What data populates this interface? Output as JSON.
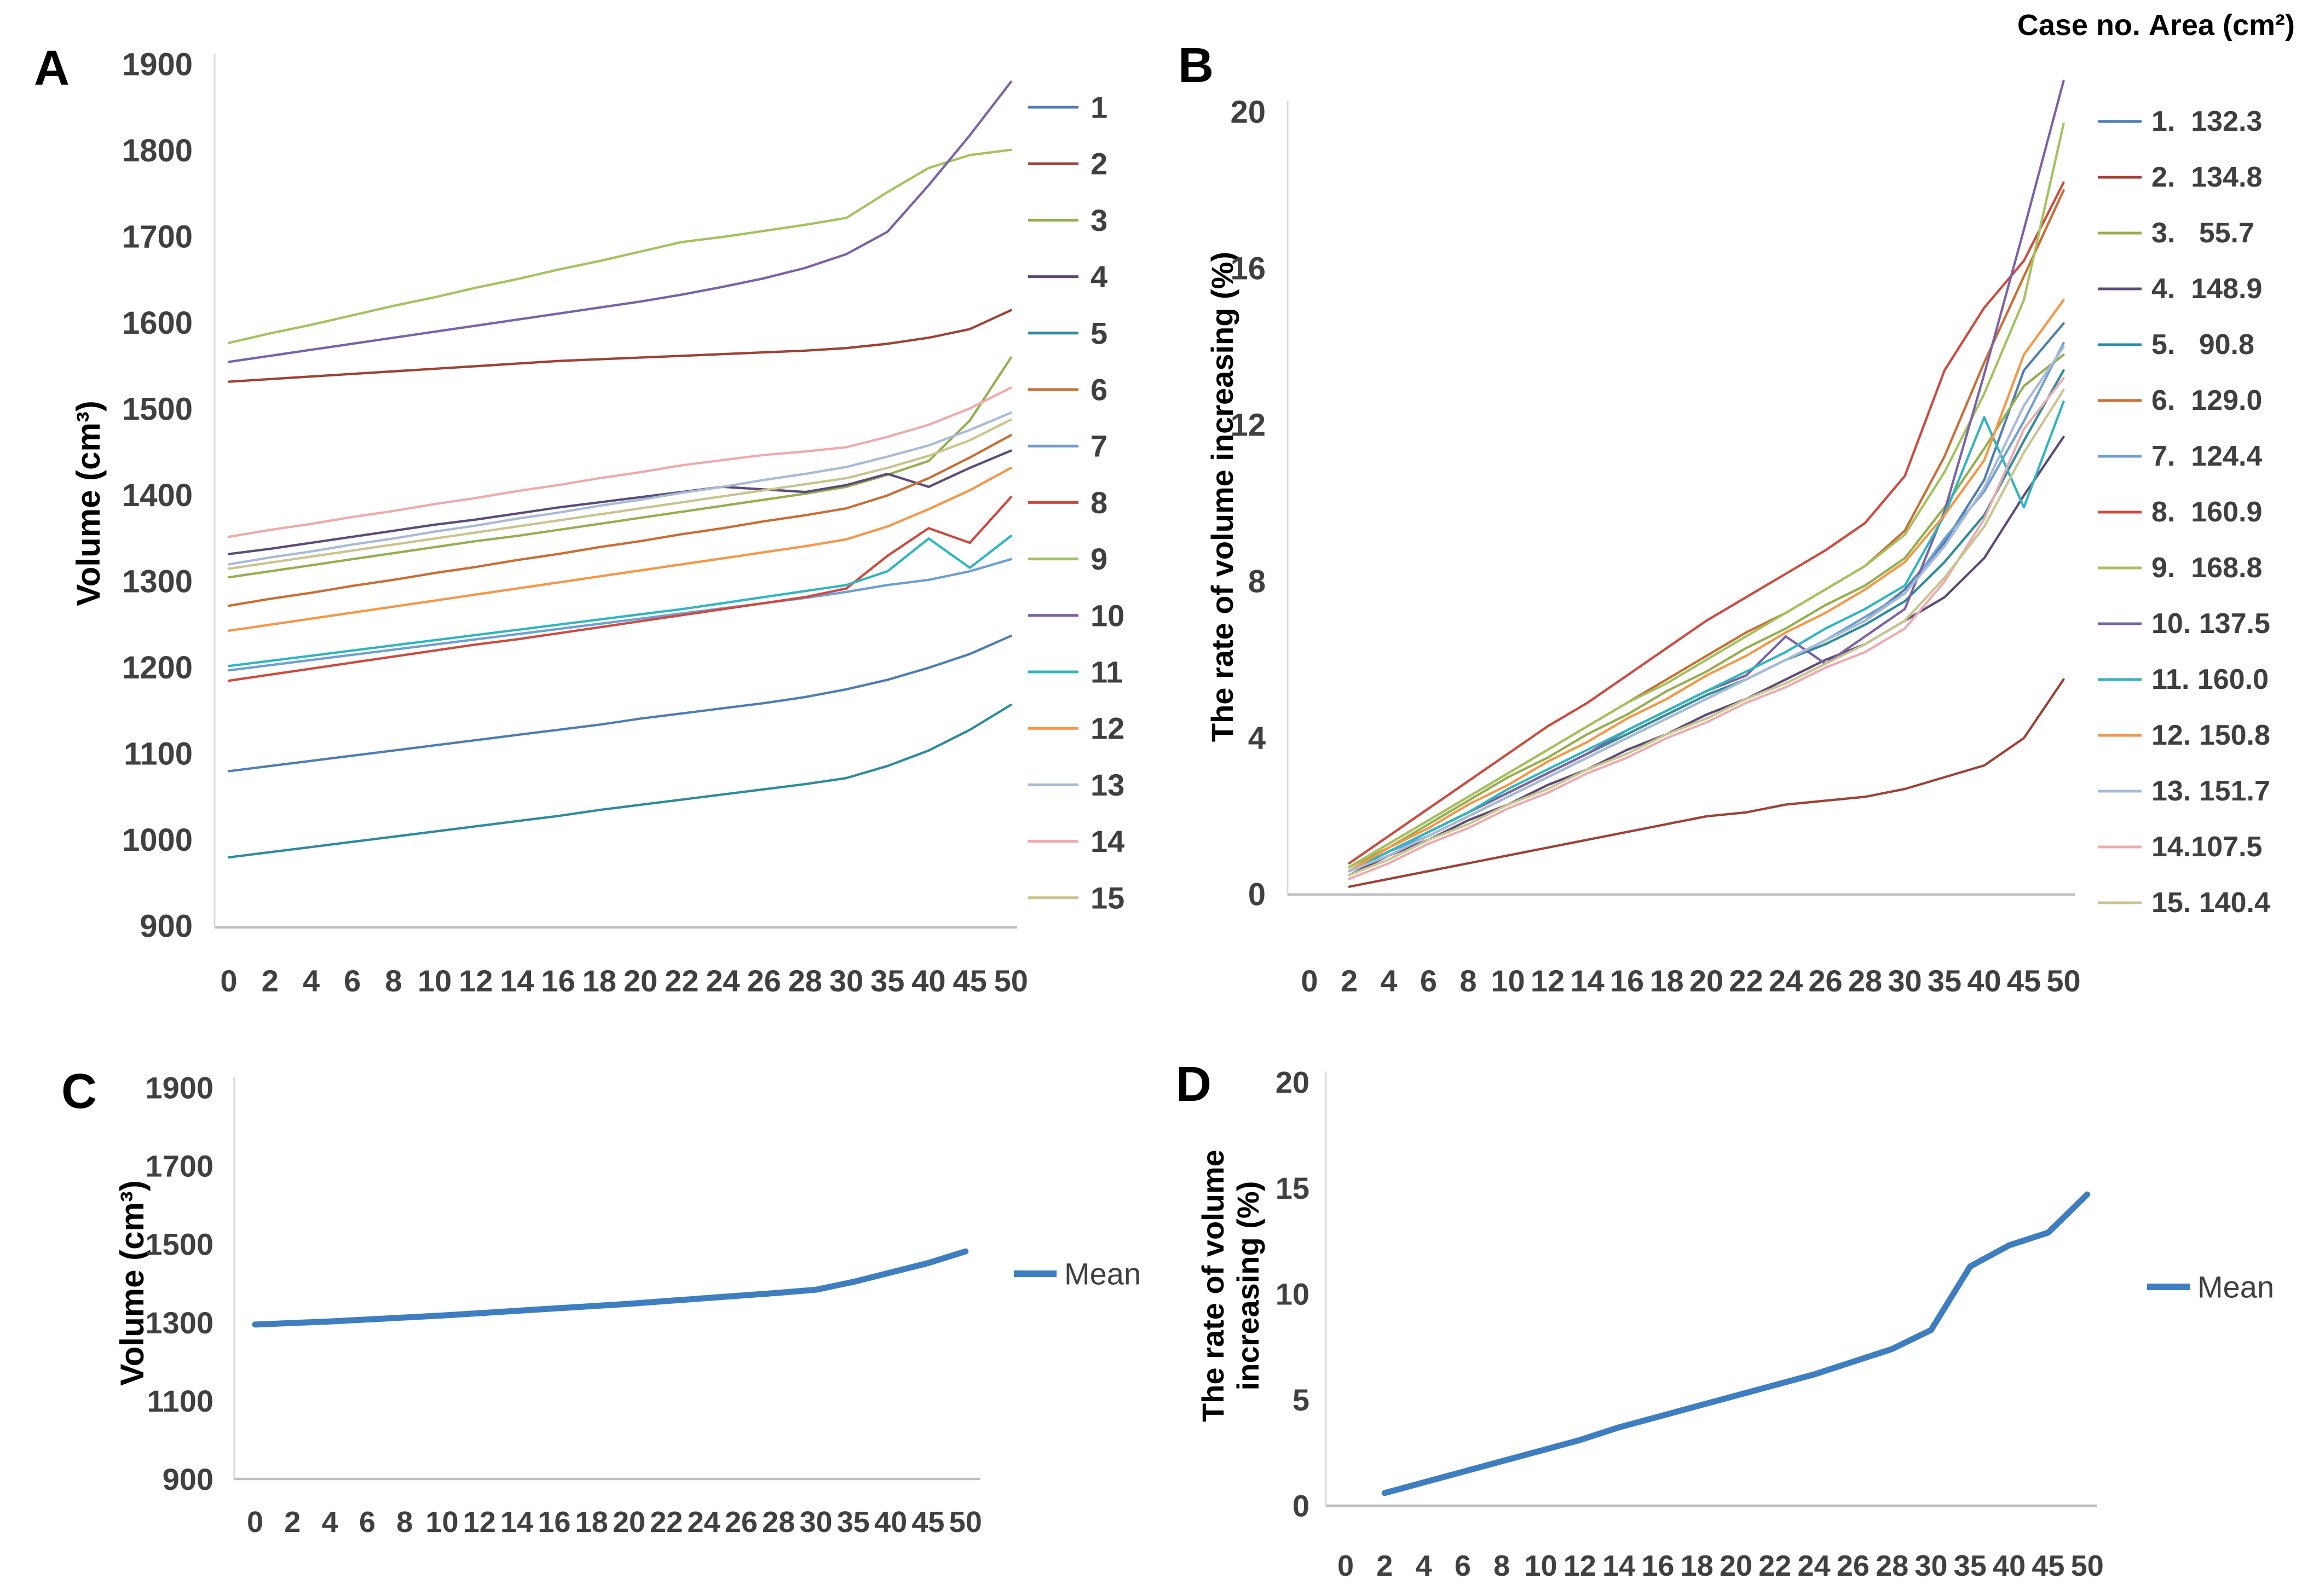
{
  "figure": {
    "background": "#ffffff",
    "panels": [
      {
        "letter": "A"
      },
      {
        "letter": "B"
      },
      {
        "letter": "C"
      },
      {
        "letter": "D"
      }
    ]
  },
  "chart_data": [
    {
      "id": "A",
      "type": "line",
      "title": "",
      "xlabel": "",
      "ylabel": "Volume (cm³)",
      "ylim": [
        900,
        1900
      ],
      "yticks": [
        "1900",
        "1800",
        "1700",
        "1600",
        "1500",
        "1400",
        "1300",
        "1200",
        "1100",
        "1000",
        "900"
      ],
      "grid": false,
      "legend_position": "right",
      "categories": [
        "0",
        "2",
        "4",
        "6",
        "8",
        "10",
        "12",
        "14",
        "16",
        "18",
        "20",
        "22",
        "24",
        "26",
        "28",
        "30",
        "35",
        "40",
        "45",
        "50"
      ],
      "series": [
        {
          "name": "1",
          "legend_label": "1",
          "color": "#4F7DB3",
          "values": [
            1080,
            1086,
            1092,
            1098,
            1104,
            1110,
            1116,
            1122,
            1128,
            1134,
            1141,
            1147,
            1153,
            1159,
            1166,
            1175,
            1186,
            1200,
            1216,
            1237
          ]
        },
        {
          "name": "2",
          "legend_label": "2",
          "color": "#9E4136",
          "values": [
            1532,
            1535,
            1538,
            1541,
            1544,
            1547,
            1550,
            1553,
            1556,
            1558,
            1560,
            1562,
            1564,
            1566,
            1568,
            1571,
            1576,
            1583,
            1593,
            1615
          ]
        },
        {
          "name": "3",
          "legend_label": "3",
          "color": "#94AF4E",
          "values": [
            1305,
            1312,
            1319,
            1326,
            1333,
            1340,
            1347,
            1353,
            1360,
            1367,
            1374,
            1381,
            1388,
            1395,
            1402,
            1410,
            1424,
            1440,
            1487,
            1560
          ]
        },
        {
          "name": "4",
          "legend_label": "4",
          "color": "#5C4B77",
          "values": [
            1332,
            1338,
            1345,
            1352,
            1359,
            1366,
            1372,
            1379,
            1386,
            1392,
            1398,
            1404,
            1410,
            1407,
            1404,
            1412,
            1425,
            1410,
            1432,
            1452
          ]
        },
        {
          "name": "5",
          "legend_label": "5",
          "color": "#2E8B9A",
          "values": [
            980,
            986,
            992,
            998,
            1004,
            1010,
            1016,
            1022,
            1028,
            1035,
            1041,
            1047,
            1053,
            1059,
            1065,
            1072,
            1086,
            1104,
            1128,
            1157
          ]
        },
        {
          "name": "6",
          "legend_label": "6",
          "color": "#CB6D34",
          "values": [
            1272,
            1280,
            1287,
            1295,
            1302,
            1310,
            1317,
            1325,
            1332,
            1340,
            1347,
            1355,
            1362,
            1370,
            1377,
            1385,
            1400,
            1420,
            1444,
            1470
          ]
        },
        {
          "name": "7",
          "legend_label": "7",
          "color": "#6E9FD4",
          "values": [
            1197,
            1203,
            1209,
            1215,
            1221,
            1227,
            1233,
            1239,
            1245,
            1251,
            1257,
            1263,
            1269,
            1275,
            1281,
            1288,
            1296,
            1302,
            1312,
            1326
          ]
        },
        {
          "name": "8",
          "legend_label": "8",
          "color": "#CE4A3F",
          "values": [
            1185,
            1192,
            1199,
            1206,
            1213,
            1220,
            1227,
            1233,
            1240,
            1247,
            1254,
            1261,
            1268,
            1275,
            1282,
            1292,
            1330,
            1362,
            1345,
            1398
          ]
        },
        {
          "name": "9",
          "legend_label": "9",
          "color": "#A3C25D",
          "values": [
            1577,
            1588,
            1598,
            1609,
            1620,
            1630,
            1641,
            1651,
            1662,
            1672,
            1683,
            1694,
            1700,
            1707,
            1714,
            1722,
            1752,
            1780,
            1795,
            1801
          ]
        },
        {
          "name": "10",
          "legend_label": "10",
          "color": "#7A62A8",
          "values": [
            1555,
            1562,
            1569,
            1576,
            1583,
            1590,
            1597,
            1604,
            1611,
            1618,
            1625,
            1633,
            1642,
            1652,
            1664,
            1680,
            1706,
            1760,
            1818,
            1880
          ]
        },
        {
          "name": "11",
          "legend_label": "11",
          "color": "#2FB6BE",
          "values": [
            1202,
            1208,
            1214,
            1220,
            1226,
            1232,
            1238,
            1244,
            1250,
            1256,
            1262,
            1268,
            1275,
            1282,
            1289,
            1296,
            1312,
            1350,
            1316,
            1353
          ]
        },
        {
          "name": "12",
          "legend_label": "12",
          "color": "#F79646",
          "values": [
            1243,
            1250,
            1257,
            1264,
            1271,
            1278,
            1285,
            1292,
            1299,
            1306,
            1313,
            1320,
            1327,
            1334,
            1341,
            1349,
            1364,
            1384,
            1406,
            1432
          ]
        },
        {
          "name": "13",
          "legend_label": "13",
          "color": "#A9BAD6",
          "values": [
            1320,
            1328,
            1335,
            1343,
            1350,
            1358,
            1365,
            1373,
            1380,
            1388,
            1395,
            1403,
            1410,
            1418,
            1425,
            1433,
            1445,
            1458,
            1476,
            1496
          ]
        },
        {
          "name": "14",
          "legend_label": "14",
          "color": "#EFAAAE",
          "values": [
            1352,
            1360,
            1367,
            1375,
            1382,
            1390,
            1397,
            1405,
            1412,
            1420,
            1427,
            1435,
            1441,
            1447,
            1451,
            1456,
            1468,
            1482,
            1501,
            1525
          ]
        },
        {
          "name": "15",
          "legend_label": "15",
          "color": "#C9C48E",
          "values": [
            1315,
            1322,
            1329,
            1336,
            1343,
            1350,
            1357,
            1364,
            1371,
            1378,
            1385,
            1392,
            1399,
            1406,
            1413,
            1420,
            1432,
            1446,
            1464,
            1488
          ]
        }
      ]
    },
    {
      "id": "B",
      "type": "line",
      "title": "",
      "xlabel": "",
      "ylabel": "The rate of volume increasing (%)",
      "ylim": [
        0,
        20
      ],
      "yticks": [
        "20",
        "16",
        "12",
        "8",
        "4",
        "0"
      ],
      "grid": false,
      "legend_position": "right",
      "legend_title": "Case no. Area (cm²)",
      "categories": [
        "0",
        "2",
        "4",
        "6",
        "8",
        "10",
        "12",
        "14",
        "16",
        "18",
        "20",
        "22",
        "24",
        "26",
        "28",
        "30",
        "35",
        "40",
        "45",
        "50"
      ],
      "series": [
        {
          "name": "1",
          "area": "132.3",
          "legend_label": "1.  132.3",
          "color": "#4F7DB3",
          "values": [
            null,
            0.6,
            1.0,
            1.5,
            2.0,
            2.5,
            3.0,
            3.5,
            4.0,
            4.5,
            5.0,
            5.5,
            6.0,
            6.5,
            7.0,
            7.8,
            9.0,
            10.6,
            13.4,
            14.6
          ]
        },
        {
          "name": "2",
          "area": "134.8",
          "legend_label": "2.  134.8",
          "color": "#9E4136",
          "values": [
            null,
            0.2,
            0.4,
            0.6,
            0.8,
            1.0,
            1.2,
            1.4,
            1.6,
            1.8,
            2.0,
            2.1,
            2.3,
            2.4,
            2.5,
            2.7,
            3.0,
            3.3,
            4.0,
            5.5
          ]
        },
        {
          "name": "3",
          "area": "55.7",
          "legend_label": "3.   55.7",
          "color": "#94AF4E",
          "values": [
            null,
            0.7,
            1.2,
            1.8,
            2.4,
            3.0,
            3.5,
            4.1,
            4.6,
            5.2,
            5.7,
            6.3,
            6.8,
            7.4,
            7.9,
            8.6,
            9.9,
            11.4,
            13.0,
            13.8
          ]
        },
        {
          "name": "4",
          "area": "148.9",
          "legend_label": "4.  148.9",
          "color": "#5C4B77",
          "values": [
            null,
            0.5,
            1.0,
            1.4,
            1.9,
            2.3,
            2.8,
            3.2,
            3.7,
            4.1,
            4.6,
            5.0,
            5.5,
            6.0,
            6.4,
            7.0,
            7.6,
            8.6,
            10.2,
            11.7
          ]
        },
        {
          "name": "5",
          "area": "90.8",
          "legend_label": "5.   90.8",
          "color": "#2E8B9A",
          "values": [
            null,
            0.6,
            1.1,
            1.6,
            2.1,
            2.6,
            3.1,
            3.6,
            4.1,
            4.6,
            5.1,
            5.5,
            6.0,
            6.4,
            6.9,
            7.5,
            8.5,
            9.7,
            11.6,
            13.4
          ]
        },
        {
          "name": "6",
          "area": "129.0",
          "legend_label": "6.  129.0",
          "color": "#CB6D34",
          "values": [
            null,
            0.7,
            1.3,
            1.9,
            2.5,
            3.1,
            3.7,
            4.3,
            4.9,
            5.5,
            6.1,
            6.7,
            7.2,
            7.8,
            8.4,
            9.3,
            11.2,
            13.6,
            15.8,
            18.0
          ]
        },
        {
          "name": "7",
          "area": "124.4",
          "legend_label": "7.  124.4",
          "color": "#6E9FD4",
          "values": [
            null,
            0.6,
            1.1,
            1.5,
            2.0,
            2.5,
            3.0,
            3.5,
            4.0,
            4.5,
            5.0,
            5.5,
            6.0,
            6.5,
            7.1,
            7.7,
            9.1,
            10.3,
            12.1,
            14.1
          ]
        },
        {
          "name": "8",
          "area": "160.9",
          "legend_label": "8.  160.9",
          "color": "#CE4A3F",
          "values": [
            null,
            0.8,
            1.5,
            2.2,
            2.9,
            3.6,
            4.3,
            4.9,
            5.6,
            6.3,
            7.0,
            7.6,
            8.2,
            8.8,
            9.5,
            10.7,
            13.4,
            15.0,
            16.2,
            18.2
          ]
        },
        {
          "name": "9",
          "area": "168.8",
          "legend_label": "9.  168.8",
          "color": "#A3C25D",
          "values": [
            null,
            0.7,
            1.3,
            1.9,
            2.5,
            3.1,
            3.7,
            4.3,
            4.9,
            5.4,
            6.0,
            6.6,
            7.2,
            7.8,
            8.4,
            9.2,
            10.8,
            12.8,
            15.2,
            19.7
          ]
        },
        {
          "name": "10",
          "area": "137.5",
          "legend_label": "10. 137.5",
          "color": "#7A62A8",
          "values": [
            null,
            0.6,
            1.1,
            1.6,
            2.1,
            2.6,
            3.1,
            3.6,
            4.2,
            4.7,
            5.2,
            5.6,
            6.6,
            5.9,
            6.6,
            7.3,
            9.8,
            13.3,
            17.0,
            20.8
          ]
        },
        {
          "name": "11",
          "area": "160.0",
          "legend_label": "11. 160.0",
          "color": "#2FB6BE",
          "values": [
            null,
            0.6,
            1.1,
            1.6,
            2.1,
            2.7,
            3.2,
            3.7,
            4.2,
            4.7,
            5.2,
            5.7,
            6.2,
            6.8,
            7.3,
            7.9,
            9.7,
            12.2,
            9.9,
            12.6
          ]
        },
        {
          "name": "12",
          "area": "150.8",
          "legend_label": "12. 150.8",
          "color": "#F79646",
          "values": [
            null,
            0.6,
            1.2,
            1.7,
            2.3,
            2.8,
            3.4,
            3.9,
            4.5,
            5.0,
            5.6,
            6.1,
            6.7,
            7.2,
            7.8,
            8.5,
            9.7,
            11.1,
            13.8,
            15.2
          ]
        },
        {
          "name": "13",
          "area": "151.7",
          "legend_label": "13. 151.7",
          "color": "#A9BAD6",
          "values": [
            null,
            0.6,
            1.0,
            1.5,
            2.0,
            2.5,
            3.0,
            3.5,
            4.0,
            4.5,
            5.0,
            5.5,
            6.0,
            6.5,
            7.0,
            7.7,
            8.9,
            10.4,
            12.5,
            14.0
          ]
        },
        {
          "name": "14",
          "area": "107.5",
          "legend_label": "14.107.5",
          "color": "#EFAAAE",
          "values": [
            null,
            0.4,
            0.8,
            1.3,
            1.7,
            2.2,
            2.6,
            3.1,
            3.5,
            4.0,
            4.4,
            4.9,
            5.3,
            5.8,
            6.2,
            6.8,
            8.0,
            9.6,
            11.9,
            13.2
          ]
        },
        {
          "name": "15",
          "area": "140.4",
          "legend_label": "15. 140.4",
          "color": "#C9C48E",
          "values": [
            null,
            0.5,
            0.9,
            1.4,
            1.8,
            2.3,
            2.7,
            3.2,
            3.6,
            4.1,
            4.5,
            5.0,
            5.4,
            5.9,
            6.4,
            7.0,
            8.1,
            9.4,
            11.3,
            12.9
          ]
        }
      ]
    },
    {
      "id": "C",
      "type": "line",
      "title": "",
      "xlabel": "",
      "ylabel": "Volume (cm³)",
      "ylim": [
        900,
        1900
      ],
      "yticks": [
        "1900",
        "1700",
        "1500",
        "1300",
        "1100",
        "900"
      ],
      "grid": false,
      "legend_position": "right",
      "categories": [
        "0",
        "2",
        "4",
        "6",
        "8",
        "10",
        "12",
        "14",
        "16",
        "18",
        "20",
        "22",
        "24",
        "26",
        "28",
        "30",
        "35",
        "40",
        "45",
        "50"
      ],
      "series": [
        {
          "name": "Mean",
          "legend_label": "Mean",
          "color": "#3E7EC0",
          "values": [
            1295,
            1299,
            1303,
            1308,
            1313,
            1318,
            1324,
            1330,
            1336,
            1342,
            1348,
            1355,
            1362,
            1369,
            1376,
            1384,
            1404,
            1428,
            1452,
            1482
          ]
        }
      ]
    },
    {
      "id": "D",
      "type": "line",
      "title": "",
      "xlabel": "",
      "ylabel": "The rate of volume\nincreasing (%)",
      "ylim": [
        0,
        20
      ],
      "yticks": [
        "20",
        "15",
        "10",
        "5",
        "0"
      ],
      "grid": false,
      "legend_position": "right",
      "categories": [
        "0",
        "2",
        "4",
        "6",
        "8",
        "10",
        "12",
        "14",
        "16",
        "18",
        "20",
        "22",
        "24",
        "26",
        "28",
        "30",
        "35",
        "40",
        "45",
        "50"
      ],
      "series": [
        {
          "name": "Mean",
          "legend_label": "Mean",
          "color": "#3E7EC0",
          "values": [
            null,
            0.6,
            1.1,
            1.6,
            2.1,
            2.6,
            3.1,
            3.7,
            4.2,
            4.7,
            5.2,
            5.7,
            6.2,
            6.8,
            7.4,
            8.3,
            11.3,
            12.3,
            12.9,
            14.7
          ]
        }
      ]
    }
  ]
}
